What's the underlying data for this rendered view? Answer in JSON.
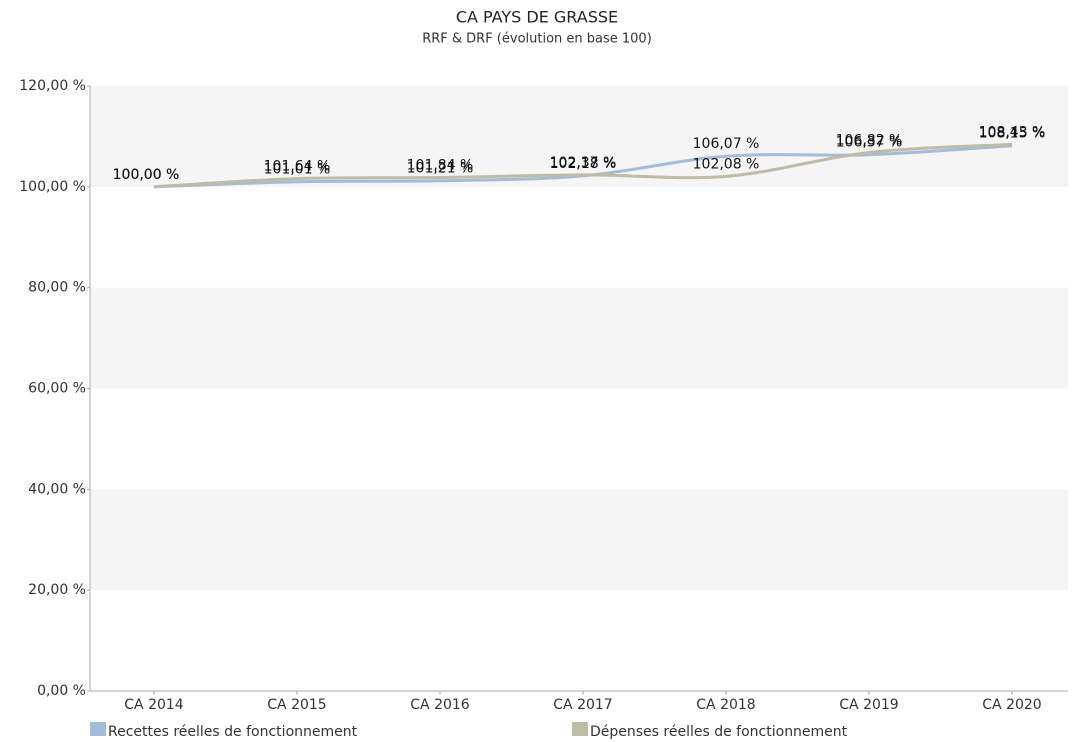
{
  "chart_data": {
    "type": "line",
    "title": "CA PAYS DE GRASSE",
    "subtitle": "RRF & DRF (évolution en base 100)",
    "categories": [
      "CA 2014",
      "CA 2015",
      "CA 2016",
      "CA 2017",
      "CA 2018",
      "CA 2019",
      "CA 2020"
    ],
    "series": [
      {
        "name": "Recettes réelles de fonctionnement",
        "color": "#a3bcd9",
        "values": [
          100,
          101.01,
          101.21,
          102.18,
          106.07,
          106.37,
          108.15
        ],
        "value_labels": [
          "100,00 %",
          "101,01 %",
          "101,21 %",
          "102,18 %",
          "106,07 %",
          "106,37 %",
          "108,15 %"
        ]
      },
      {
        "name": "Dépenses réelles de fonctionnement",
        "color": "#bfbca5",
        "values": [
          100,
          101.64,
          101.84,
          102.37,
          102.08,
          106.82,
          108.43
        ],
        "value_labels": [
          "100,00 %",
          "101,64 %",
          "101,84 %",
          "102,37 %",
          "102,08 %",
          "106,82 %",
          "108,43 %"
        ]
      }
    ],
    "ylim": [
      0,
      120
    ],
    "yticks": [
      {
        "value": 0,
        "label": "0,00 %"
      },
      {
        "value": 20,
        "label": "20,00 %"
      },
      {
        "value": 40,
        "label": "40,00 %"
      },
      {
        "value": 60,
        "label": "60,00 %"
      },
      {
        "value": 80,
        "label": "80,00 %"
      },
      {
        "value": 100,
        "label": "100,00 %"
      },
      {
        "value": 120,
        "label": "120,00 %"
      }
    ],
    "grid": true
  }
}
